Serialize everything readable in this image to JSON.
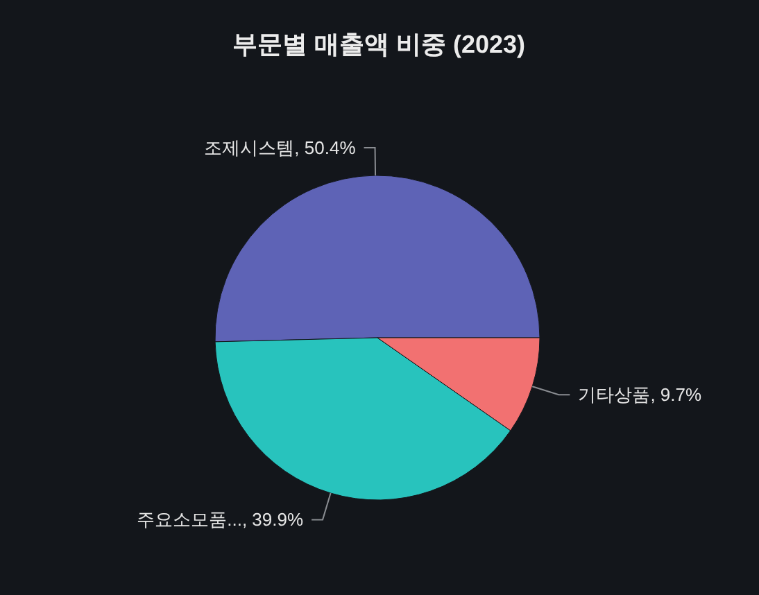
{
  "chart_data": {
    "type": "pie",
    "title": "부문별 매출액 비중 (2023)",
    "categories": [
      "조제시스템",
      "주요소모품...",
      "기타상품"
    ],
    "values": [
      50.4,
      39.9,
      9.7
    ],
    "colors": [
      "#5e63b6",
      "#28c3bd",
      "#f27171"
    ],
    "value_labels": [
      "50.4%",
      "39.9%",
      "9.7%"
    ]
  }
}
